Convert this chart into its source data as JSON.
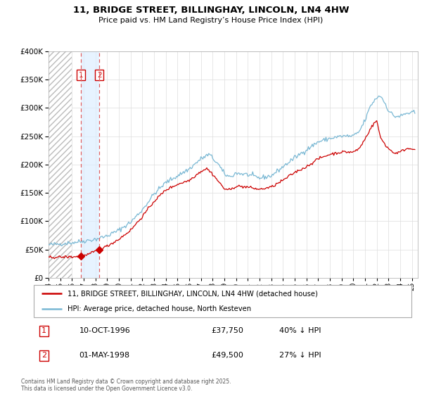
{
  "title": "11, BRIDGE STREET, BILLINGHAY, LINCOLN, LN4 4HW",
  "subtitle": "Price paid vs. HM Land Registry’s House Price Index (HPI)",
  "legend_line1": "11, BRIDGE STREET, BILLINGHAY, LINCOLN, LN4 4HW (detached house)",
  "legend_line2": "HPI: Average price, detached house, North Kesteven",
  "footnote": "Contains HM Land Registry data © Crown copyright and database right 2025.\nThis data is licensed under the Open Government Licence v3.0.",
  "transaction1_date": "10-OCT-1996",
  "transaction1_price": "£37,750",
  "transaction1_hpi": "40% ↓ HPI",
  "transaction2_date": "01-MAY-1998",
  "transaction2_price": "£49,500",
  "transaction2_hpi": "27% ↓ HPI",
  "transaction1_x": 1996.78,
  "transaction1_y": 37750,
  "transaction2_x": 1998.33,
  "transaction2_y": 49500,
  "hpi_line_color": "#7ab8d4",
  "price_line_color": "#cc0000",
  "vline_color": "#e06060",
  "shade_color": "#ddeeff",
  "hatch_color": "#cccccc",
  "ylim": [
    0,
    400000
  ],
  "xlim_left": 1994.0,
  "xlim_right": 2025.5,
  "hatch_end": 1996.0,
  "y_tick_labels": [
    "£0",
    "£50K",
    "£100K",
    "£150K",
    "£200K",
    "£250K",
    "£300K",
    "£350K",
    "£400K"
  ],
  "y_tick_values": [
    0,
    50000,
    100000,
    150000,
    200000,
    250000,
    300000,
    350000,
    400000
  ]
}
